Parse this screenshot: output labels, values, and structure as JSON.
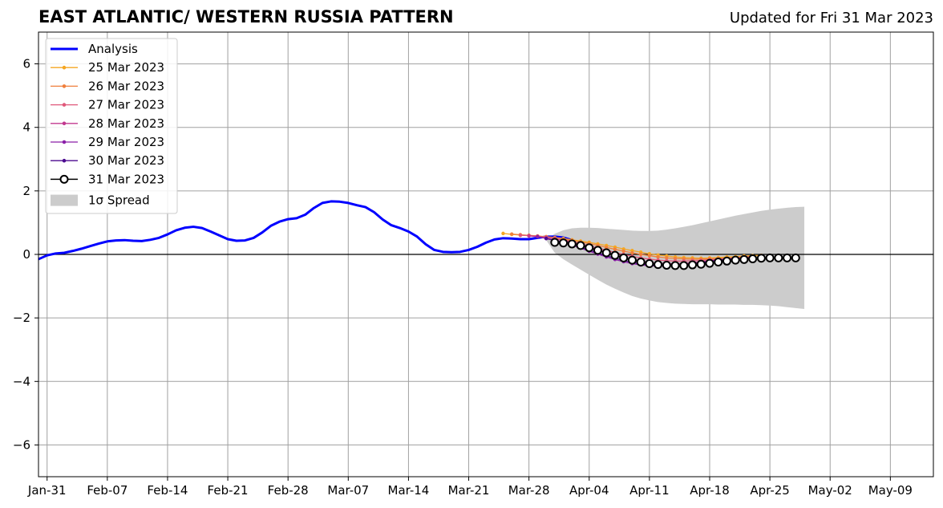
{
  "chart_data": {
    "type": "line",
    "title": "EAST ATLANTIC/ WESTERN RUSSIA PATTERN",
    "subtitle": "Updated for Fri 31 Mar 2023",
    "xlabel": "",
    "ylabel": "",
    "ylim": [
      -7,
      7
    ],
    "yticks": [
      -6,
      -4,
      -2,
      0,
      2,
      4,
      6
    ],
    "ytick_labels": [
      "−6",
      "−4",
      "−2",
      "0",
      "2",
      "4",
      "6"
    ],
    "xlim": [
      "2023-01-30",
      "2023-05-14"
    ],
    "xticks": [
      "2023-01-31",
      "2023-02-07",
      "2023-02-14",
      "2023-02-21",
      "2023-02-28",
      "2023-03-07",
      "2023-03-14",
      "2023-03-21",
      "2023-03-28",
      "2023-04-04",
      "2023-04-11",
      "2023-04-18",
      "2023-04-25",
      "2023-05-02",
      "2023-05-09"
    ],
    "xtick_labels": [
      "Jan-31",
      "Feb-07",
      "Feb-14",
      "Feb-21",
      "Feb-28",
      "Mar-07",
      "Mar-14",
      "Mar-21",
      "Mar-28",
      "Apr-04",
      "Apr-11",
      "Apr-18",
      "Apr-25",
      "May-02",
      "May-09"
    ],
    "grid": true,
    "legend_position": "upper-left",
    "analysis": {
      "name": "Analysis",
      "color": "#0000ff",
      "start_date": "2023-01-30",
      "values": [
        -0.15,
        -0.03,
        0.03,
        0.05,
        0.11,
        0.18,
        0.26,
        0.34,
        0.41,
        0.44,
        0.45,
        0.43,
        0.42,
        0.46,
        0.52,
        0.63,
        0.76,
        0.84,
        0.87,
        0.83,
        0.72,
        0.6,
        0.48,
        0.43,
        0.44,
        0.52,
        0.69,
        0.9,
        1.03,
        1.11,
        1.14,
        1.25,
        1.46,
        1.62,
        1.67,
        1.66,
        1.62,
        1.55,
        1.49,
        1.33,
        1.1,
        0.92,
        0.83,
        0.72,
        0.56,
        0.32,
        0.14,
        0.08,
        0.07,
        0.08,
        0.14,
        0.24,
        0.37,
        0.47,
        0.51,
        0.5,
        0.48,
        0.48,
        0.52,
        0.56,
        0.56,
        0.53,
        0.45
      ]
    },
    "forecasts": [
      {
        "name": "25 Mar 2023",
        "color": "#f5a623",
        "start_date": "2023-03-25",
        "values": [
          0.66,
          0.63,
          0.61,
          0.6,
          0.58,
          0.56,
          0.53,
          0.5,
          0.46,
          0.42,
          0.38,
          0.33,
          0.28,
          0.23,
          0.17,
          0.12,
          0.07,
          0.02,
          -0.02,
          -0.05,
          -0.08,
          -0.1,
          -0.11,
          -0.12,
          -0.11,
          -0.1,
          -0.08,
          -0.07,
          -0.05,
          -0.04,
          -0.03
        ]
      },
      {
        "name": "26 Mar 2023",
        "color": "#f07f3c",
        "start_date": "2023-03-26",
        "values": [
          0.64,
          0.62,
          0.6,
          0.58,
          0.55,
          0.52,
          0.48,
          0.44,
          0.39,
          0.34,
          0.28,
          0.22,
          0.16,
          0.1,
          0.05,
          0.0,
          -0.04,
          -0.08,
          -0.11,
          -0.13,
          -0.14,
          -0.15,
          -0.15,
          -0.14,
          -0.13,
          -0.12,
          -0.1,
          -0.08,
          -0.06
        ]
      },
      {
        "name": "27 Mar 2023",
        "color": "#e0587a",
        "start_date": "2023-03-27",
        "values": [
          0.6,
          0.59,
          0.57,
          0.54,
          0.5,
          0.45,
          0.4,
          0.34,
          0.27,
          0.2,
          0.13,
          0.06,
          0.0,
          -0.06,
          -0.11,
          -0.15,
          -0.18,
          -0.2,
          -0.21,
          -0.21,
          -0.2,
          -0.19,
          -0.17,
          -0.15,
          -0.13,
          -0.11,
          -0.09,
          -0.08
        ]
      },
      {
        "name": "28 Mar 2023",
        "color": "#c2388f",
        "start_date": "2023-03-28",
        "values": [
          0.58,
          0.56,
          0.53,
          0.49,
          0.44,
          0.38,
          0.31,
          0.23,
          0.15,
          0.07,
          -0.01,
          -0.08,
          -0.15,
          -0.2,
          -0.25,
          -0.28,
          -0.29,
          -0.29,
          -0.28,
          -0.26,
          -0.23,
          -0.2,
          -0.17,
          -0.15,
          -0.13,
          -0.11,
          -0.1
        ]
      },
      {
        "name": "29 Mar 2023",
        "color": "#8a1fa8",
        "start_date": "2023-03-29",
        "values": [
          0.56,
          0.5,
          0.44,
          0.37,
          0.29,
          0.2,
          0.1,
          0.01,
          -0.08,
          -0.16,
          -0.23,
          -0.29,
          -0.33,
          -0.36,
          -0.37,
          -0.37,
          -0.35,
          -0.32,
          -0.29,
          -0.25,
          -0.21,
          -0.18,
          -0.15,
          -0.13,
          -0.11,
          -0.1
        ]
      },
      {
        "name": "30 Mar 2023",
        "color": "#4b0a8f",
        "start_date": "2023-03-30",
        "values": [
          0.5,
          0.44,
          0.38,
          0.31,
          0.23,
          0.14,
          0.05,
          -0.04,
          -0.12,
          -0.19,
          -0.25,
          -0.3,
          -0.33,
          -0.35,
          -0.36,
          -0.35,
          -0.33,
          -0.3,
          -0.26,
          -0.22,
          -0.19,
          -0.16,
          -0.14,
          -0.12,
          -0.11
        ]
      },
      {
        "name": "31 Mar 2023",
        "color": "#000000",
        "start_date": "2023-03-31",
        "values": [
          0.38,
          0.36,
          0.33,
          0.28,
          0.21,
          0.13,
          0.05,
          -0.03,
          -0.11,
          -0.18,
          -0.24,
          -0.29,
          -0.32,
          -0.34,
          -0.35,
          -0.35,
          -0.33,
          -0.31,
          -0.28,
          -0.24,
          -0.21,
          -0.18,
          -0.16,
          -0.14,
          -0.12,
          -0.11,
          -0.11,
          -0.11,
          -0.11
        ]
      }
    ],
    "spread": {
      "name": "1σ Spread",
      "color": "#cccccc",
      "start_date": "2023-03-30",
      "upper": [
        0.45,
        0.65,
        0.76,
        0.82,
        0.84,
        0.84,
        0.83,
        0.81,
        0.79,
        0.77,
        0.75,
        0.74,
        0.74,
        0.75,
        0.78,
        0.82,
        0.87,
        0.92,
        0.98,
        1.04,
        1.1,
        1.16,
        1.22,
        1.27,
        1.32,
        1.37,
        1.41,
        1.44,
        1.47,
        1.49,
        1.5
      ],
      "lower": [
        0.45,
        0.05,
        -0.15,
        -0.32,
        -0.48,
        -0.64,
        -0.8,
        -0.95,
        -1.08,
        -1.2,
        -1.31,
        -1.39,
        -1.45,
        -1.5,
        -1.53,
        -1.55,
        -1.56,
        -1.57,
        -1.57,
        -1.57,
        -1.58,
        -1.58,
        -1.58,
        -1.59,
        -1.59,
        -1.6,
        -1.61,
        -1.63,
        -1.66,
        -1.69,
        -1.72
      ]
    },
    "legend": [
      "Analysis",
      "25 Mar 2023",
      "26 Mar 2023",
      "27 Mar 2023",
      "28 Mar 2023",
      "29 Mar 2023",
      "30 Mar 2023",
      "31 Mar 2023",
      "1σ Spread"
    ]
  }
}
